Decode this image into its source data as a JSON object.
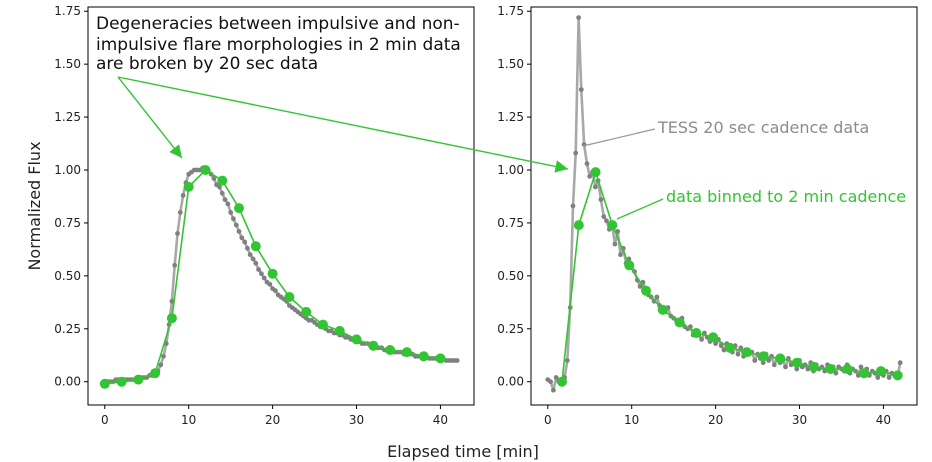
{
  "colors": {
    "raw": "#808080",
    "raw_line": "#a8a8a8",
    "binned": "#33c433",
    "axis": "#000000",
    "text": "#222222"
  },
  "chart_data": [
    {
      "type": "line",
      "panel": "left",
      "xlabel": "",
      "ylabel": "Normalized Flux",
      "xlim": [
        -2,
        44
      ],
      "ylim": [
        -0.11,
        1.77
      ],
      "xticks": [
        0,
        10,
        20,
        30,
        40
      ],
      "yticks": [
        "0.00",
        "0.25",
        "0.50",
        "0.75",
        "1.00",
        "1.25",
        "1.50",
        "1.75"
      ],
      "annotation": {
        "lines": [
          "Degeneracies between impulsive and non-",
          "impulsive flare morphologies in 2 min data",
          "are broken by 20 sec data"
        ],
        "arrow_targets": [
          [
            9.3,
            1.06
          ]
        ]
      },
      "series": [
        {
          "name": "TESS 20 sec cadence data",
          "x": [
            0.0,
            0.33,
            0.67,
            1.0,
            1.33,
            1.67,
            2.0,
            2.33,
            2.67,
            3.0,
            3.33,
            3.67,
            4.0,
            4.33,
            4.67,
            5.0,
            5.33,
            5.67,
            6.0,
            6.33,
            6.67,
            7.0,
            7.33,
            7.67,
            8.0,
            8.33,
            8.67,
            9.0,
            9.33,
            9.67,
            10.0,
            10.33,
            10.67,
            11.0,
            11.33,
            11.67,
            12.0,
            12.33,
            12.67,
            13.0,
            13.33,
            13.67,
            14.0,
            14.33,
            14.67,
            15.0,
            15.33,
            15.67,
            16.0,
            16.33,
            16.67,
            17.0,
            17.33,
            17.67,
            18.0,
            18.33,
            18.67,
            19.0,
            19.33,
            19.67,
            20.0,
            20.33,
            20.67,
            21.0,
            21.33,
            21.67,
            22.0,
            22.33,
            22.67,
            23.0,
            23.33,
            23.67,
            24.0,
            24.33,
            24.67,
            25.0,
            25.33,
            25.67,
            26.0,
            26.33,
            26.67,
            27.0,
            27.33,
            27.67,
            28.0,
            28.33,
            28.67,
            29.0,
            29.33,
            29.67,
            30.0,
            30.33,
            30.67,
            31.0,
            31.33,
            31.67,
            32.0,
            32.33,
            32.67,
            33.0,
            33.33,
            33.67,
            34.0,
            34.33,
            34.67,
            35.0,
            35.33,
            35.67,
            36.0,
            36.33,
            36.67,
            37.0,
            37.33,
            37.67,
            38.0,
            38.33,
            38.67,
            39.0,
            39.33,
            39.67,
            40.0,
            40.33,
            40.67,
            41.0,
            41.33,
            41.67,
            42.0
          ],
          "y": [
            0.0,
            0.0,
            0.0,
            0.0,
            0.01,
            0.01,
            0.01,
            0.01,
            0.01,
            0.01,
            0.01,
            0.01,
            0.02,
            0.02,
            0.02,
            0.02,
            0.03,
            0.03,
            0.04,
            0.05,
            0.08,
            0.12,
            0.18,
            0.27,
            0.38,
            0.55,
            0.7,
            0.8,
            0.88,
            0.94,
            0.98,
            0.99,
            1.0,
            1.0,
            1.0,
            1.01,
            1.01,
            1.0,
            0.98,
            0.96,
            0.93,
            0.92,
            0.89,
            0.86,
            0.84,
            0.8,
            0.77,
            0.74,
            0.71,
            0.68,
            0.66,
            0.63,
            0.6,
            0.58,
            0.56,
            0.53,
            0.51,
            0.49,
            0.47,
            0.46,
            0.44,
            0.43,
            0.41,
            0.4,
            0.39,
            0.38,
            0.36,
            0.35,
            0.34,
            0.33,
            0.32,
            0.31,
            0.3,
            0.29,
            0.29,
            0.28,
            0.27,
            0.26,
            0.26,
            0.25,
            0.24,
            0.24,
            0.23,
            0.23,
            0.22,
            0.22,
            0.21,
            0.21,
            0.2,
            0.2,
            0.19,
            0.19,
            0.18,
            0.18,
            0.18,
            0.17,
            0.17,
            0.16,
            0.16,
            0.16,
            0.15,
            0.15,
            0.15,
            0.14,
            0.14,
            0.14,
            0.14,
            0.13,
            0.13,
            0.13,
            0.13,
            0.12,
            0.12,
            0.12,
            0.12,
            0.12,
            0.11,
            0.11,
            0.11,
            0.11,
            0.11,
            0.11,
            0.1,
            0.1,
            0.1,
            0.1,
            0.1
          ]
        },
        {
          "name": "data binned to 2 min cadence",
          "x": [
            0,
            2,
            4,
            6,
            8,
            10,
            12,
            14,
            16,
            18,
            20,
            22,
            24,
            26,
            28,
            30,
            32,
            34,
            36,
            38,
            40
          ],
          "y": [
            -0.01,
            0.0,
            0.01,
            0.04,
            0.3,
            0.92,
            1.0,
            0.95,
            0.82,
            0.64,
            0.51,
            0.4,
            0.33,
            0.27,
            0.24,
            0.2,
            0.17,
            0.15,
            0.14,
            0.12,
            0.11
          ]
        }
      ]
    },
    {
      "type": "line",
      "panel": "right",
      "xlabel": "",
      "ylabel": "",
      "xlim": [
        -2,
        44
      ],
      "ylim": [
        -0.11,
        1.77
      ],
      "xticks": [
        0,
        10,
        20,
        30,
        40
      ],
      "yticks": [
        "0.00",
        "0.25",
        "0.50",
        "0.75",
        "1.00",
        "1.25",
        "1.50",
        "1.75"
      ],
      "annotations": {
        "raw_label": "TESS 20 sec cadence data",
        "binned_label": "data binned to 2 min cadence"
      },
      "series": [
        {
          "name": "TESS 20 sec cadence data",
          "x": [
            0.0,
            0.33,
            0.67,
            1.0,
            1.33,
            1.67,
            2.0,
            2.33,
            2.67,
            3.0,
            3.33,
            3.67,
            4.0,
            4.33,
            4.67,
            5.0,
            5.33,
            5.67,
            6.0,
            6.33,
            6.67,
            7.0,
            7.33,
            7.67,
            8.0,
            8.33,
            8.67,
            9.0,
            9.33,
            9.67,
            10.0,
            10.33,
            10.67,
            11.0,
            11.33,
            11.67,
            12.0,
            12.33,
            12.67,
            13.0,
            13.33,
            13.67,
            14.0,
            14.33,
            14.67,
            15.0,
            15.33,
            15.67,
            16.0,
            16.33,
            16.67,
            17.0,
            17.33,
            17.67,
            18.0,
            18.33,
            18.67,
            19.0,
            19.33,
            19.67,
            20.0,
            20.33,
            20.67,
            21.0,
            21.33,
            21.67,
            22.0,
            22.33,
            22.67,
            23.0,
            23.33,
            23.67,
            24.0,
            24.33,
            24.67,
            25.0,
            25.33,
            25.67,
            26.0,
            26.33,
            26.67,
            27.0,
            27.33,
            27.67,
            28.0,
            28.33,
            28.67,
            29.0,
            29.33,
            29.67,
            30.0,
            30.33,
            30.67,
            31.0,
            31.33,
            31.67,
            32.0,
            32.33,
            32.67,
            33.0,
            33.33,
            33.67,
            34.0,
            34.33,
            34.67,
            35.0,
            35.33,
            35.67,
            36.0,
            36.33,
            36.67,
            37.0,
            37.33,
            37.67,
            38.0,
            38.33,
            38.67,
            39.0,
            39.33,
            39.67,
            40.0,
            40.33,
            40.67,
            41.0,
            41.33,
            41.67,
            42.0
          ],
          "y": [
            0.01,
            0.0,
            -0.04,
            0.02,
            0.0,
            0.0,
            0.02,
            0.1,
            0.35,
            0.83,
            1.08,
            1.72,
            1.38,
            1.12,
            1.03,
            0.97,
            0.99,
            0.92,
            0.95,
            0.86,
            0.78,
            0.76,
            0.72,
            0.74,
            0.65,
            0.71,
            0.6,
            0.63,
            0.56,
            0.58,
            0.55,
            0.52,
            0.48,
            0.45,
            0.47,
            0.44,
            0.41,
            0.4,
            0.38,
            0.4,
            0.36,
            0.34,
            0.33,
            0.35,
            0.31,
            0.3,
            0.29,
            0.28,
            0.3,
            0.26,
            0.25,
            0.26,
            0.22,
            0.24,
            0.22,
            0.2,
            0.23,
            0.21,
            0.19,
            0.22,
            0.18,
            0.2,
            0.17,
            0.15,
            0.18,
            0.16,
            0.14,
            0.17,
            0.13,
            0.16,
            0.12,
            0.15,
            0.13,
            0.14,
            0.1,
            0.13,
            0.11,
            0.09,
            0.13,
            0.1,
            0.12,
            0.08,
            0.11,
            0.09,
            0.1,
            0.07,
            0.11,
            0.08,
            0.09,
            0.06,
            0.1,
            0.07,
            0.08,
            0.06,
            0.09,
            0.05,
            0.08,
            0.06,
            0.07,
            0.05,
            0.08,
            0.05,
            0.07,
            0.04,
            0.07,
            0.06,
            0.05,
            0.08,
            0.04,
            0.06,
            0.05,
            0.03,
            0.07,
            0.04,
            0.06,
            0.03,
            0.05,
            0.04,
            0.02,
            0.06,
            0.03,
            0.05,
            0.02,
            0.04,
            0.03,
            0.02,
            0.09
          ]
        },
        {
          "name": "data binned to 2 min cadence",
          "x": [
            1.7,
            3.7,
            5.7,
            7.7,
            9.7,
            11.7,
            13.7,
            15.7,
            17.7,
            19.7,
            21.7,
            23.7,
            25.7,
            27.7,
            29.7,
            31.7,
            33.7,
            35.7,
            37.7,
            39.7,
            41.7
          ],
          "y": [
            0.0,
            0.74,
            0.99,
            0.74,
            0.55,
            0.43,
            0.34,
            0.28,
            0.23,
            0.21,
            0.16,
            0.14,
            0.12,
            0.11,
            0.09,
            0.07,
            0.06,
            0.06,
            0.04,
            0.05,
            0.03
          ]
        }
      ]
    }
  ],
  "figure": {
    "xlabel": "Elapsed time [min]"
  }
}
